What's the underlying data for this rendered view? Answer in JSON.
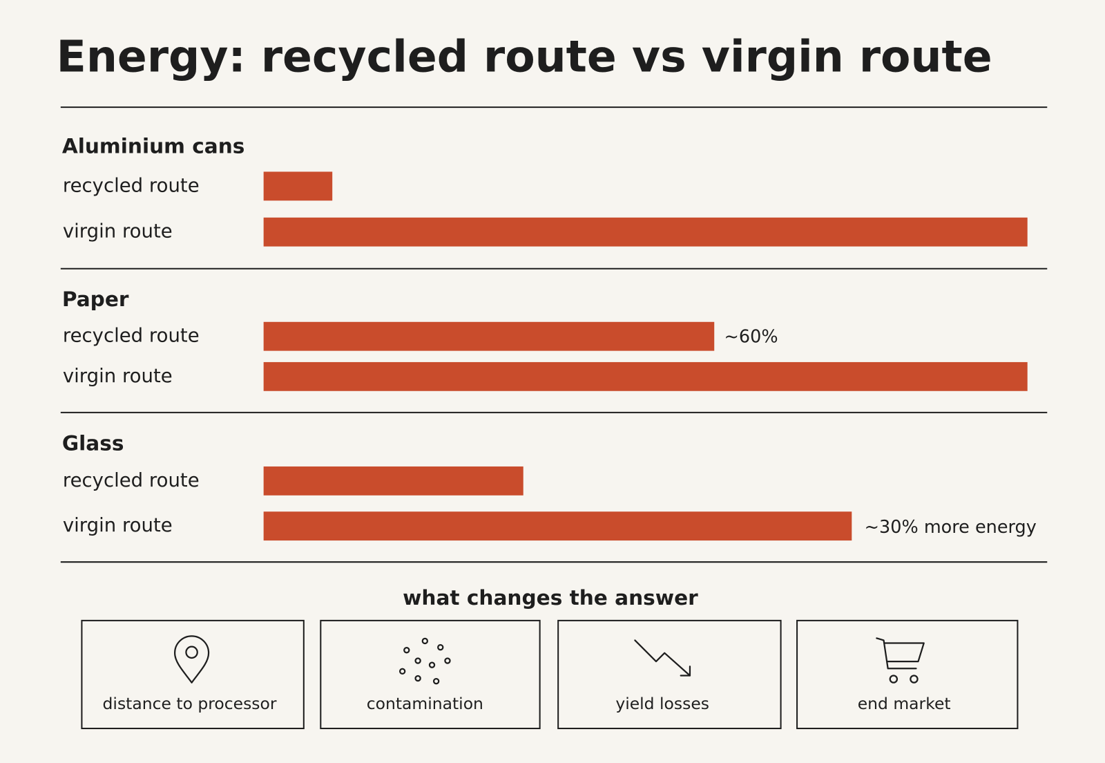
{
  "chart_data": {
    "type": "bar",
    "title": "Energy: recycled route vs virgin route",
    "xlim": [
      0,
      100
    ],
    "color": "#c94c2c",
    "groups": [
      {
        "name": "Aluminium cans",
        "categories": [
          "recycled route",
          "virgin route"
        ],
        "values": [
          9,
          100
        ]
      },
      {
        "name": "Paper",
        "categories": [
          "recycled route",
          "virgin route"
        ],
        "values": [
          59,
          100
        ],
        "value_labels": [
          "~60%",
          null
        ]
      },
      {
        "name": "Glass",
        "categories": [
          "recycled route",
          "virgin route"
        ],
        "values": [
          34,
          77
        ],
        "note": "~30% more energy"
      }
    ]
  },
  "factors": {
    "title": "what changes the answer",
    "items": [
      "distance to processor",
      "contamination",
      "yield losses",
      "end market"
    ]
  }
}
